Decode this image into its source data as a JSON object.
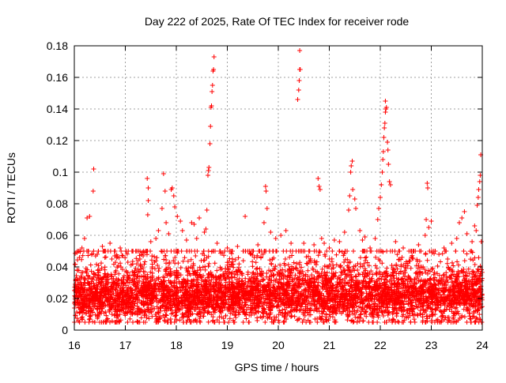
{
  "chart_data": {
    "type": "scatter",
    "title": "Day 222 of 2025, Rate Of TEC Index for receiver rode",
    "xlabel": "GPS time / hours",
    "ylabel": "ROTI / TECUs",
    "xlim": [
      16,
      24
    ],
    "ylim": [
      0,
      0.18
    ],
    "x_ticks": [
      16,
      17,
      18,
      19,
      20,
      21,
      22,
      23,
      24
    ],
    "x_tick_labels": [
      "16",
      "17",
      "18",
      "19",
      "20",
      "21",
      "22",
      "23",
      "24"
    ],
    "y_ticks": [
      0,
      0.02,
      0.04,
      0.06,
      0.08,
      0.1,
      0.12,
      0.14,
      0.16,
      0.18
    ],
    "y_tick_labels": [
      "0",
      "0.02",
      "0.04",
      "0.06",
      "0.08",
      "0.1",
      "0.12",
      "0.14",
      "0.16",
      "0.18"
    ],
    "grid": true,
    "marker": "+",
    "color": "#ff0000",
    "series": [
      {
        "name": "ROTI",
        "points": [
          [
            16.05,
            0.049
          ],
          [
            16.1,
            0.046
          ],
          [
            16.15,
            0.052
          ],
          [
            16.2,
            0.058
          ],
          [
            16.25,
            0.071
          ],
          [
            16.3,
            0.072
          ],
          [
            16.38,
            0.102
          ],
          [
            16.37,
            0.088
          ],
          [
            16.45,
            0.048
          ],
          [
            16.55,
            0.053
          ],
          [
            16.6,
            0.046
          ],
          [
            16.7,
            0.055
          ],
          [
            16.8,
            0.05
          ],
          [
            16.9,
            0.052
          ],
          [
            16.95,
            0.047
          ],
          [
            17.05,
            0.043
          ],
          [
            17.15,
            0.05
          ],
          [
            17.25,
            0.044
          ],
          [
            17.35,
            0.047
          ],
          [
            17.43,
            0.096
          ],
          [
            17.45,
            0.09
          ],
          [
            17.45,
            0.082
          ],
          [
            17.44,
            0.073
          ],
          [
            17.5,
            0.056
          ],
          [
            17.6,
            0.058
          ],
          [
            17.65,
            0.063
          ],
          [
            17.72,
            0.077
          ],
          [
            17.75,
            0.099
          ],
          [
            17.78,
            0.088
          ],
          [
            17.8,
            0.068
          ],
          [
            17.85,
            0.061
          ],
          [
            17.9,
            0.089
          ],
          [
            17.92,
            0.09
          ],
          [
            17.95,
            0.085
          ],
          [
            17.97,
            0.078
          ],
          [
            18.02,
            0.072
          ],
          [
            18.08,
            0.069
          ],
          [
            18.12,
            0.063
          ],
          [
            18.2,
            0.057
          ],
          [
            18.3,
            0.068
          ],
          [
            18.35,
            0.067
          ],
          [
            18.4,
            0.058
          ],
          [
            18.45,
            0.071
          ],
          [
            18.55,
            0.062
          ],
          [
            18.58,
            0.064
          ],
          [
            18.6,
            0.076
          ],
          [
            18.62,
            0.098
          ],
          [
            18.63,
            0.101
          ],
          [
            18.64,
            0.103
          ],
          [
            18.66,
            0.118
          ],
          [
            18.67,
            0.129
          ],
          [
            18.68,
            0.141
          ],
          [
            18.69,
            0.142
          ],
          [
            18.7,
            0.151
          ],
          [
            18.71,
            0.155
          ],
          [
            18.72,
            0.164
          ],
          [
            18.73,
            0.165
          ],
          [
            18.74,
            0.173
          ],
          [
            18.8,
            0.055
          ],
          [
            18.9,
            0.049
          ],
          [
            19.0,
            0.052
          ],
          [
            19.1,
            0.05
          ],
          [
            19.2,
            0.053
          ],
          [
            19.35,
            0.072
          ],
          [
            19.5,
            0.05
          ],
          [
            19.6,
            0.054
          ],
          [
            19.7,
            0.048
          ],
          [
            19.72,
            0.068
          ],
          [
            19.75,
            0.091
          ],
          [
            19.76,
            0.088
          ],
          [
            19.78,
            0.077
          ],
          [
            19.85,
            0.062
          ],
          [
            19.95,
            0.058
          ],
          [
            20.05,
            0.06
          ],
          [
            20.15,
            0.063
          ],
          [
            20.25,
            0.055
          ],
          [
            20.35,
            0.05
          ],
          [
            20.38,
            0.146
          ],
          [
            20.4,
            0.152
          ],
          [
            20.41,
            0.158
          ],
          [
            20.42,
            0.165
          ],
          [
            20.43,
            0.165
          ],
          [
            20.42,
            0.177
          ],
          [
            20.5,
            0.055
          ],
          [
            20.6,
            0.05
          ],
          [
            20.7,
            0.054
          ],
          [
            20.78,
            0.096
          ],
          [
            20.8,
            0.091
          ],
          [
            20.82,
            0.089
          ],
          [
            20.85,
            0.058
          ],
          [
            20.9,
            0.055
          ],
          [
            21.0,
            0.052
          ],
          [
            21.1,
            0.057
          ],
          [
            21.2,
            0.056
          ],
          [
            21.3,
            0.062
          ],
          [
            21.38,
            0.076
          ],
          [
            21.4,
            0.085
          ],
          [
            21.42,
            0.1
          ],
          [
            21.43,
            0.104
          ],
          [
            21.45,
            0.107
          ],
          [
            21.46,
            0.089
          ],
          [
            21.5,
            0.083
          ],
          [
            21.52,
            0.077
          ],
          [
            21.6,
            0.063
          ],
          [
            21.65,
            0.057
          ],
          [
            21.7,
            0.059
          ],
          [
            21.8,
            0.052
          ],
          [
            21.9,
            0.058
          ],
          [
            21.95,
            0.07
          ],
          [
            21.97,
            0.077
          ],
          [
            22.0,
            0.084
          ],
          [
            22.02,
            0.092
          ],
          [
            22.04,
            0.1
          ],
          [
            22.05,
            0.108
          ],
          [
            22.06,
            0.113
          ],
          [
            22.07,
            0.122
          ],
          [
            22.08,
            0.128
          ],
          [
            22.09,
            0.131
          ],
          [
            22.1,
            0.138
          ],
          [
            22.11,
            0.14
          ],
          [
            22.12,
            0.141
          ],
          [
            22.1,
            0.145
          ],
          [
            22.14,
            0.119
          ],
          [
            22.15,
            0.114
          ],
          [
            22.16,
            0.105
          ],
          [
            22.18,
            0.094
          ],
          [
            22.2,
            0.092
          ],
          [
            22.2,
            0.05
          ],
          [
            22.3,
            0.056
          ],
          [
            22.45,
            0.052
          ],
          [
            22.6,
            0.05
          ],
          [
            22.75,
            0.054
          ],
          [
            22.88,
            0.06
          ],
          [
            22.9,
            0.07
          ],
          [
            22.92,
            0.093
          ],
          [
            22.93,
            0.09
          ],
          [
            22.95,
            0.065
          ],
          [
            23.0,
            0.069
          ],
          [
            23.05,
            0.05
          ],
          [
            23.15,
            0.048
          ],
          [
            23.25,
            0.052
          ],
          [
            23.4,
            0.055
          ],
          [
            23.5,
            0.058
          ],
          [
            23.55,
            0.068
          ],
          [
            23.6,
            0.071
          ],
          [
            23.65,
            0.075
          ],
          [
            23.7,
            0.061
          ],
          [
            23.8,
            0.056
          ],
          [
            23.85,
            0.066
          ],
          [
            23.88,
            0.063
          ],
          [
            23.9,
            0.079
          ],
          [
            23.92,
            0.084
          ],
          [
            23.93,
            0.089
          ],
          [
            23.95,
            0.094
          ],
          [
            23.96,
            0.098
          ],
          [
            23.97,
            0.111
          ],
          [
            23.98,
            0.056
          ]
        ],
        "dense_band": {
          "description": "dense band of points covering the whole time range",
          "xmin": 16.0,
          "xmax": 24.0,
          "ymin": 0.005,
          "ymax": 0.05,
          "center": 0.022,
          "count": 5200
        }
      }
    ]
  }
}
